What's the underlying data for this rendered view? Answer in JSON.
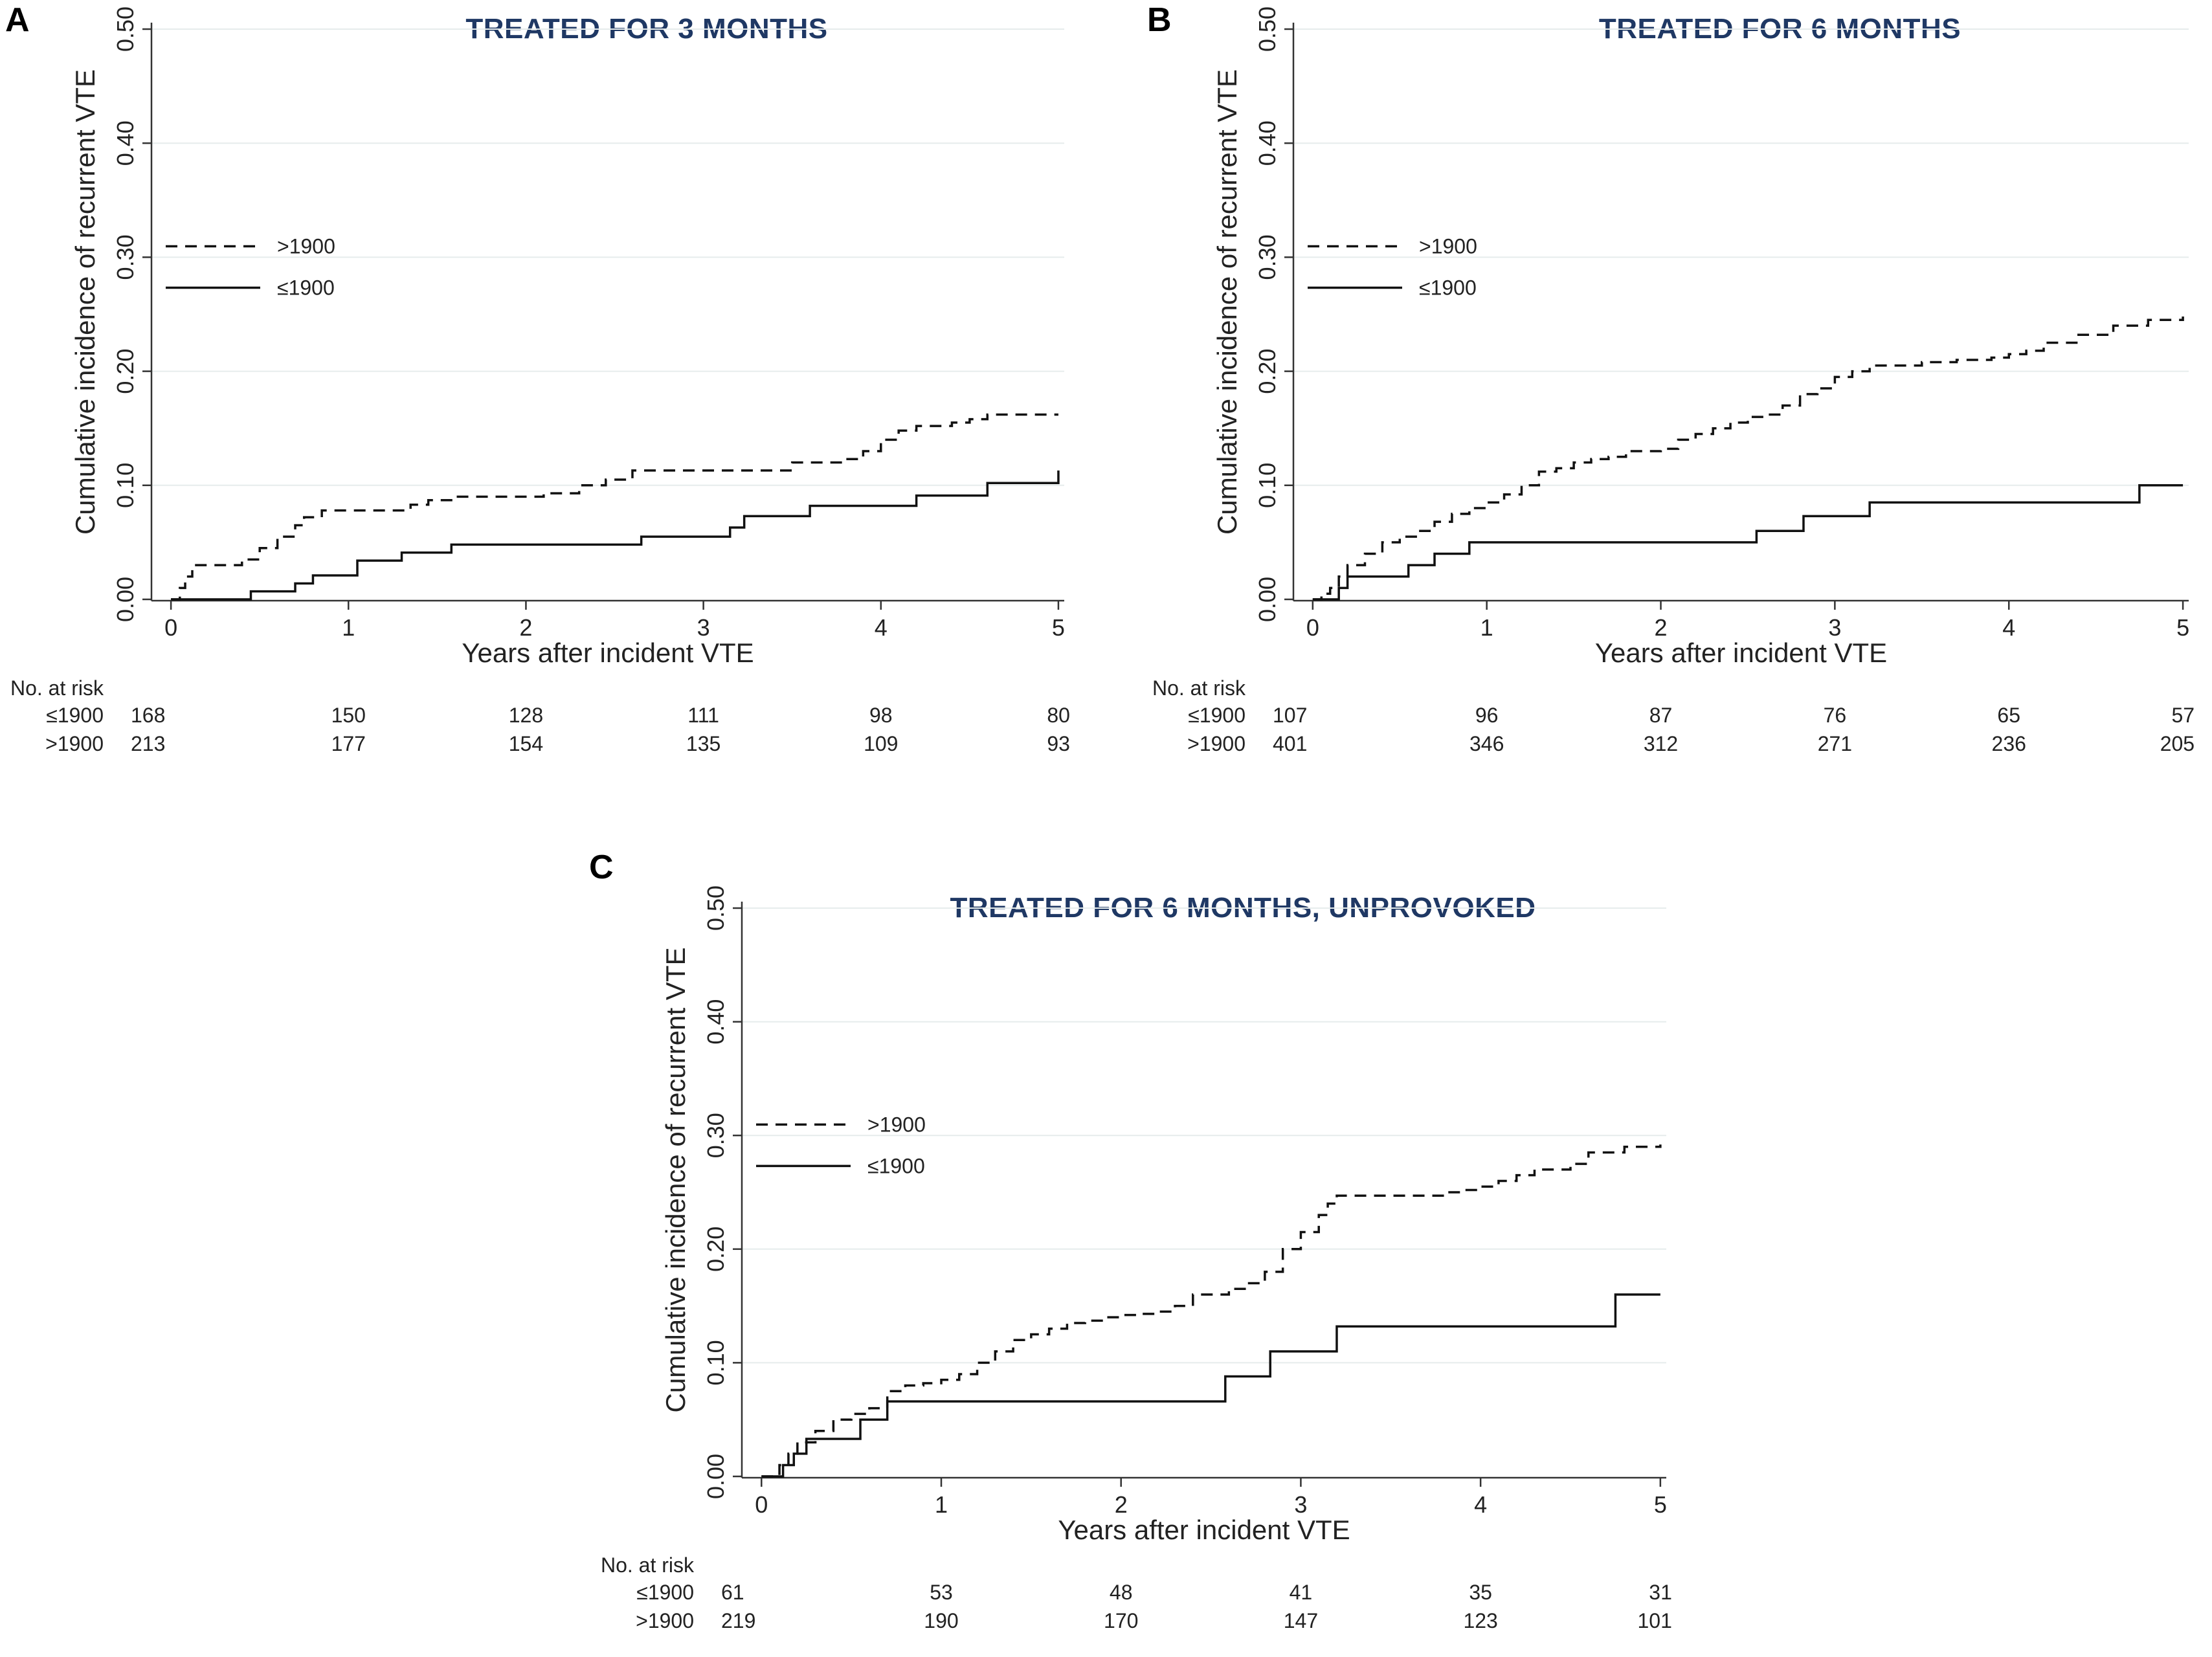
{
  "risk_header": "No. at risk",
  "chart_data": [
    {
      "panel": "A",
      "type": "line",
      "title": "TREATED FOR 3 MONTHS",
      "xlabel": "Years after incident VTE",
      "ylabel": "Cumulative incidence of recurrent VTE",
      "xlim": [
        0,
        5
      ],
      "ylim": [
        0,
        0.5
      ],
      "xticks": [
        "0",
        "1",
        "2",
        "3",
        "4",
        "5"
      ],
      "yticks": [
        "0.00",
        "0.10",
        "0.20",
        "0.30",
        "0.40",
        "0.50"
      ],
      "grid": true,
      "legend_position": "upper-left",
      "series": [
        {
          "name": ">1900",
          "style": "dashed",
          "x": [
            0,
            0.05,
            0.08,
            0.12,
            0.2,
            0.4,
            0.5,
            0.6,
            0.7,
            0.75,
            0.85,
            1.2,
            1.35,
            1.45,
            1.6,
            2.0,
            2.1,
            2.3,
            2.45,
            2.6,
            3.4,
            3.5,
            3.8,
            3.9,
            4.0,
            4.1,
            4.2,
            4.4,
            4.5,
            4.6,
            5.0
          ],
          "y": [
            0,
            0.01,
            0.02,
            0.03,
            0.03,
            0.035,
            0.045,
            0.055,
            0.065,
            0.072,
            0.078,
            0.078,
            0.083,
            0.087,
            0.09,
            0.09,
            0.093,
            0.1,
            0.105,
            0.113,
            0.113,
            0.12,
            0.123,
            0.13,
            0.14,
            0.148,
            0.152,
            0.155,
            0.158,
            0.162,
            0.162
          ]
        },
        {
          "name": "≤1900",
          "style": "solid",
          "x": [
            0,
            0.45,
            0.7,
            0.8,
            1.05,
            1.3,
            1.58,
            2.65,
            3.15,
            3.23,
            3.6,
            4.2,
            4.6,
            4.98,
            5.0
          ],
          "y": [
            0,
            0.007,
            0.014,
            0.021,
            0.034,
            0.041,
            0.048,
            0.055,
            0.063,
            0.073,
            0.082,
            0.091,
            0.102,
            0.102,
            0.113
          ]
        }
      ],
      "risk_table": [
        {
          "label": "≤1900",
          "values": [
            "168",
            "150",
            "128",
            "111",
            "98",
            "80"
          ]
        },
        {
          "label": ">1900",
          "values": [
            "213",
            "177",
            "154",
            "135",
            "109",
            "93"
          ]
        }
      ]
    },
    {
      "panel": "B",
      "type": "line",
      "title": "TREATED FOR 6 MONTHS",
      "xlabel": "Years after incident VTE",
      "ylabel": "Cumulative incidence of recurrent VTE",
      "xlim": [
        0,
        5
      ],
      "ylim": [
        0,
        0.5
      ],
      "xticks": [
        "0",
        "1",
        "2",
        "3",
        "4",
        "5"
      ],
      "yticks": [
        "0.00",
        "0.10",
        "0.20",
        "0.30",
        "0.40",
        "0.50"
      ],
      "grid": true,
      "legend_position": "upper-left",
      "series": [
        {
          "name": ">1900",
          "style": "dashed",
          "x": [
            0,
            0.05,
            0.1,
            0.15,
            0.2,
            0.3,
            0.4,
            0.5,
            0.6,
            0.7,
            0.8,
            0.9,
            1.0,
            1.1,
            1.2,
            1.3,
            1.4,
            1.5,
            1.6,
            1.7,
            1.8,
            2.0,
            2.1,
            2.2,
            2.3,
            2.4,
            2.5,
            2.6,
            2.7,
            2.8,
            2.9,
            3.0,
            3.1,
            3.2,
            3.5,
            3.7,
            3.9,
            4.0,
            4.1,
            4.2,
            4.4,
            4.6,
            4.8,
            5.0
          ],
          "y": [
            0,
            0.005,
            0.01,
            0.02,
            0.03,
            0.04,
            0.05,
            0.055,
            0.06,
            0.068,
            0.075,
            0.08,
            0.085,
            0.092,
            0.1,
            0.112,
            0.115,
            0.12,
            0.123,
            0.125,
            0.13,
            0.132,
            0.14,
            0.145,
            0.15,
            0.155,
            0.16,
            0.162,
            0.17,
            0.18,
            0.185,
            0.195,
            0.2,
            0.205,
            0.208,
            0.21,
            0.212,
            0.215,
            0.218,
            0.225,
            0.232,
            0.24,
            0.245,
            0.248
          ]
        },
        {
          "name": "≤1900",
          "style": "solid",
          "x": [
            0,
            0.15,
            0.2,
            0.3,
            0.55,
            0.7,
            0.9,
            2.55,
            2.82,
            3.2,
            4.75,
            5.0
          ],
          "y": [
            0,
            0.01,
            0.02,
            0.02,
            0.03,
            0.04,
            0.05,
            0.06,
            0.073,
            0.085,
            0.1,
            0.1
          ]
        }
      ],
      "risk_table": [
        {
          "label": "≤1900",
          "values": [
            "107",
            "96",
            "87",
            "76",
            "65",
            "57"
          ]
        },
        {
          "label": ">1900",
          "values": [
            "401",
            "346",
            "312",
            "271",
            "236",
            "205"
          ]
        }
      ]
    },
    {
      "panel": "C",
      "type": "line",
      "title": "TREATED FOR 6 MONTHS, UNPROVOKED",
      "xlabel": "Years after incident VTE",
      "ylabel": "Cumulative incidence of recurrent VTE",
      "xlim": [
        0,
        5
      ],
      "ylim": [
        0,
        0.5
      ],
      "xticks": [
        "0",
        "1",
        "2",
        "3",
        "4",
        "5"
      ],
      "yticks": [
        "0.00",
        "0.10",
        "0.20",
        "0.30",
        "0.40",
        "0.50"
      ],
      "grid": true,
      "legend_position": "upper-left",
      "series": [
        {
          "name": ">1900",
          "style": "dashed",
          "x": [
            0,
            0.1,
            0.15,
            0.2,
            0.3,
            0.4,
            0.5,
            0.6,
            0.7,
            0.8,
            0.9,
            1.0,
            1.1,
            1.2,
            1.3,
            1.4,
            1.5,
            1.6,
            1.7,
            1.8,
            1.9,
            2.0,
            2.1,
            2.2,
            2.3,
            2.4,
            2.6,
            2.7,
            2.8,
            2.9,
            3.0,
            3.1,
            3.15,
            3.2,
            3.6,
            3.8,
            3.9,
            4.0,
            4.1,
            4.2,
            4.3,
            4.5,
            4.6,
            4.8,
            5.0
          ],
          "y": [
            0,
            0.01,
            0.02,
            0.03,
            0.04,
            0.05,
            0.055,
            0.06,
            0.075,
            0.08,
            0.082,
            0.085,
            0.09,
            0.1,
            0.11,
            0.12,
            0.125,
            0.13,
            0.135,
            0.137,
            0.14,
            0.142,
            0.143,
            0.145,
            0.15,
            0.16,
            0.165,
            0.17,
            0.18,
            0.2,
            0.215,
            0.23,
            0.24,
            0.247,
            0.247,
            0.25,
            0.252,
            0.255,
            0.26,
            0.265,
            0.27,
            0.275,
            0.285,
            0.29,
            0.292
          ]
        },
        {
          "name": "≤1900",
          "style": "solid",
          "x": [
            0,
            0.12,
            0.18,
            0.25,
            0.55,
            0.7,
            2.58,
            2.83,
            3.2,
            4.75,
            5.0
          ],
          "y": [
            0,
            0.01,
            0.02,
            0.033,
            0.05,
            0.066,
            0.088,
            0.11,
            0.132,
            0.16,
            0.16
          ]
        }
      ],
      "risk_table": [
        {
          "label": "≤1900",
          "values": [
            "61",
            "53",
            "48",
            "41",
            "35",
            "31"
          ]
        },
        {
          "label": ">1900",
          "values": [
            "219",
            "190",
            "170",
            "147",
            "123",
            "101"
          ]
        }
      ]
    }
  ]
}
